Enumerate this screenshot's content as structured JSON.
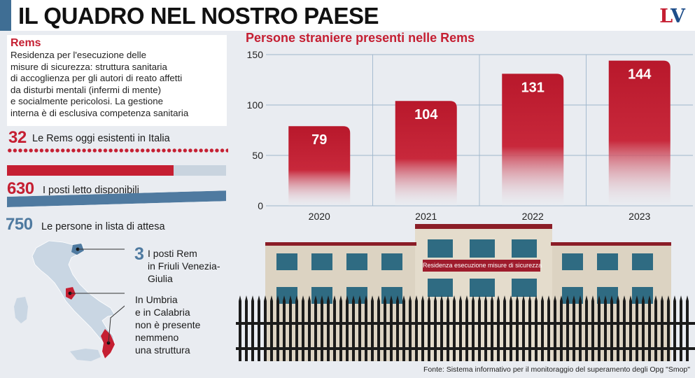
{
  "header": {
    "title": "IL QUADRO NEL NOSTRO PAESE",
    "logo_l": "L",
    "logo_v": "V"
  },
  "rems": {
    "title": "Rems",
    "description_lines": [
      "Residenza per l'esecuzione delle",
      "misure di sicurezza: struttura sanitaria",
      "di accoglienza per gli autori di reato affetti",
      "da disturbi mentali (infermi di mente)",
      "e socialmente pericolosi. La gestione",
      "interna è di esclusiva competenza sanitaria"
    ]
  },
  "stats": {
    "rems_count": {
      "value": "32",
      "label": "Le Rems oggi esistenti in Italia"
    },
    "beds": {
      "value": "630",
      "label": "I posti letto disponibili",
      "fill_fraction": 0.76
    },
    "waiting": {
      "value": "750",
      "label": "Le persone in lista di attesa"
    }
  },
  "map": {
    "fvg_value": "3",
    "fvg_lines": [
      "I posti Rem",
      "in Friuli Venezia-",
      "Giulia"
    ],
    "umbria_lines": [
      "In Umbria",
      "e in Calabria",
      "non è presente",
      "nemmeno",
      "una struttura"
    ]
  },
  "chart_data": {
    "type": "bar",
    "title": "Persone straniere presenti nelle Rems",
    "categories": [
      "2020",
      "2021",
      "2022",
      "2023"
    ],
    "values": [
      79,
      104,
      131,
      144
    ],
    "ylim": [
      0,
      150
    ],
    "yticks": [
      0,
      50,
      100,
      150
    ],
    "grid": true,
    "bar_color": "#c51f32"
  },
  "building": {
    "sign_text": "Residenza esecuzione misure di sicurezza"
  },
  "source": "Fonte: Sistema informativo per il monitoraggio del superamento degli Opg \"Smop\""
}
